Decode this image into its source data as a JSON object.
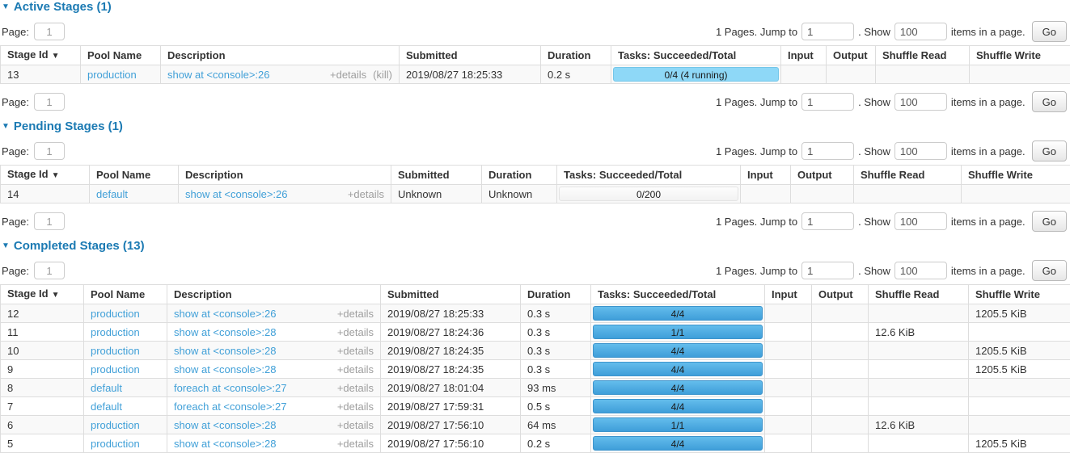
{
  "colors": {
    "heading": "#1b7ab3",
    "link": "#41a0d8",
    "muted": "#9e9e9e",
    "text": "#333333",
    "table_border": "#dddddd",
    "row_stripe": "#f9f9f9",
    "bar_completed_top": "#63bdec",
    "bar_completed_bottom": "#3f9ed9",
    "bar_running": "#8ed8f7"
  },
  "pagination": {
    "page_label": "Page:",
    "page_value": "1",
    "pages_text": "1 Pages. Jump to",
    "jump_value": "1",
    "show_text": ". Show",
    "show_value": "100",
    "items_text": "items in a page.",
    "go_label": "Go"
  },
  "sections": [
    {
      "id": "active",
      "title": "Active Stages (1)",
      "collapse_arrow": "▼",
      "sort_arrow": "▼",
      "columns": [
        "Stage Id",
        "Pool Name",
        "Description",
        "Submitted",
        "Duration",
        "Tasks: Succeeded/Total",
        "Input",
        "Output",
        "Shuffle Read",
        "Shuffle Write"
      ],
      "bottom_pagination": true,
      "rows": [
        {
          "stage_id": "13",
          "pool": "production",
          "description": "show at <console>:26",
          "details_label": "+details",
          "kill_label": "(kill)",
          "submitted": "2019/08/27 18:25:33",
          "duration": "0.2 s",
          "tasks_label": "0/4 (4 running)",
          "bar": "running",
          "input": "",
          "output": "",
          "shuffle_read": "",
          "shuffle_write": ""
        }
      ]
    },
    {
      "id": "pending",
      "title": "Pending Stages (1)",
      "collapse_arrow": "▼",
      "sort_arrow": "▼",
      "columns": [
        "Stage Id",
        "Pool Name",
        "Description",
        "Submitted",
        "Duration",
        "Tasks: Succeeded/Total",
        "Input",
        "Output",
        "Shuffle Read",
        "Shuffle Write"
      ],
      "bottom_pagination": true,
      "rows": [
        {
          "stage_id": "14",
          "pool": "default",
          "description": "show at <console>:26",
          "details_label": "+details",
          "kill_label": "",
          "submitted": "Unknown",
          "duration": "Unknown",
          "tasks_label": "0/200",
          "bar": "empty",
          "input": "",
          "output": "",
          "shuffle_read": "",
          "shuffle_write": ""
        }
      ]
    },
    {
      "id": "completed",
      "title": "Completed Stages (13)",
      "collapse_arrow": "▼",
      "sort_arrow": "▼",
      "columns": [
        "Stage Id",
        "Pool Name",
        "Description",
        "Submitted",
        "Duration",
        "Tasks: Succeeded/Total",
        "Input",
        "Output",
        "Shuffle Read",
        "Shuffle Write"
      ],
      "bottom_pagination": false,
      "rows": [
        {
          "stage_id": "12",
          "pool": "production",
          "description": "show at <console>:26",
          "details_label": "+details",
          "kill_label": "",
          "submitted": "2019/08/27 18:25:33",
          "duration": "0.3 s",
          "tasks_label": "4/4",
          "bar": "completed",
          "input": "",
          "output": "",
          "shuffle_read": "",
          "shuffle_write": "1205.5 KiB"
        },
        {
          "stage_id": "11",
          "pool": "production",
          "description": "show at <console>:28",
          "details_label": "+details",
          "kill_label": "",
          "submitted": "2019/08/27 18:24:36",
          "duration": "0.3 s",
          "tasks_label": "1/1",
          "bar": "completed",
          "input": "",
          "output": "",
          "shuffle_read": "12.6 KiB",
          "shuffle_write": ""
        },
        {
          "stage_id": "10",
          "pool": "production",
          "description": "show at <console>:28",
          "details_label": "+details",
          "kill_label": "",
          "submitted": "2019/08/27 18:24:35",
          "duration": "0.3 s",
          "tasks_label": "4/4",
          "bar": "completed",
          "input": "",
          "output": "",
          "shuffle_read": "",
          "shuffle_write": "1205.5 KiB"
        },
        {
          "stage_id": "9",
          "pool": "production",
          "description": "show at <console>:28",
          "details_label": "+details",
          "kill_label": "",
          "submitted": "2019/08/27 18:24:35",
          "duration": "0.3 s",
          "tasks_label": "4/4",
          "bar": "completed",
          "input": "",
          "output": "",
          "shuffle_read": "",
          "shuffle_write": "1205.5 KiB"
        },
        {
          "stage_id": "8",
          "pool": "default",
          "description": "foreach at <console>:27",
          "details_label": "+details",
          "kill_label": "",
          "submitted": "2019/08/27 18:01:04",
          "duration": "93 ms",
          "tasks_label": "4/4",
          "bar": "completed",
          "input": "",
          "output": "",
          "shuffle_read": "",
          "shuffle_write": ""
        },
        {
          "stage_id": "7",
          "pool": "default",
          "description": "foreach at <console>:27",
          "details_label": "+details",
          "kill_label": "",
          "submitted": "2019/08/27 17:59:31",
          "duration": "0.5 s",
          "tasks_label": "4/4",
          "bar": "completed",
          "input": "",
          "output": "",
          "shuffle_read": "",
          "shuffle_write": ""
        },
        {
          "stage_id": "6",
          "pool": "production",
          "description": "show at <console>:28",
          "details_label": "+details",
          "kill_label": "",
          "submitted": "2019/08/27 17:56:10",
          "duration": "64 ms",
          "tasks_label": "1/1",
          "bar": "completed",
          "input": "",
          "output": "",
          "shuffle_read": "12.6 KiB",
          "shuffle_write": ""
        },
        {
          "stage_id": "5",
          "pool": "production",
          "description": "show at <console>:28",
          "details_label": "+details",
          "kill_label": "",
          "submitted": "2019/08/27 17:56:10",
          "duration": "0.2 s",
          "tasks_label": "4/4",
          "bar": "completed",
          "input": "",
          "output": "",
          "shuffle_read": "",
          "shuffle_write": "1205.5 KiB"
        }
      ]
    }
  ]
}
